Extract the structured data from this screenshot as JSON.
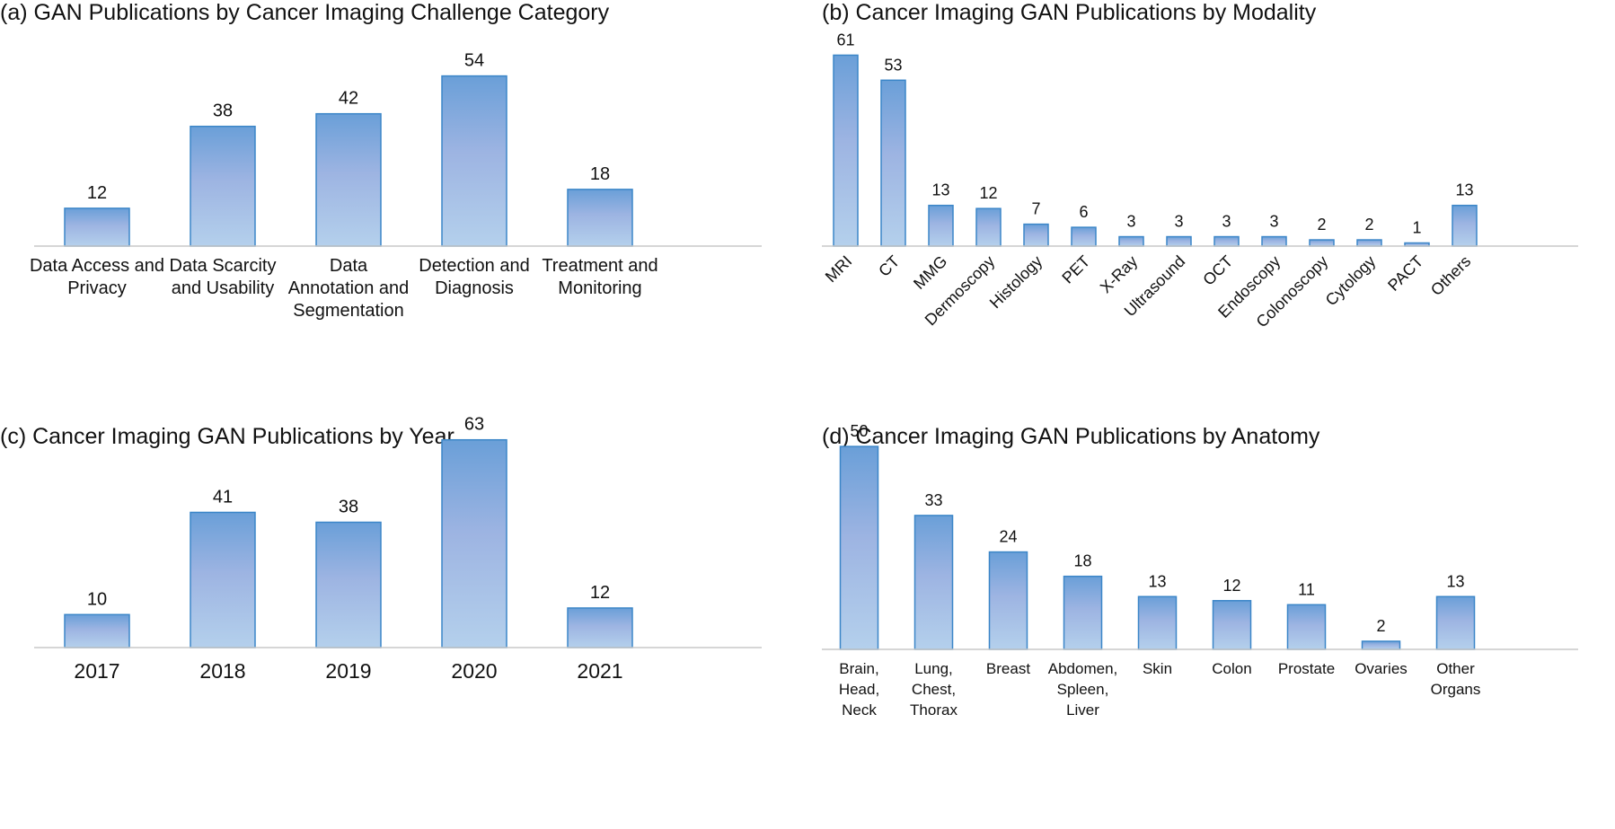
{
  "colors": {
    "bar_top": "#6a9fd8",
    "bar_mid": "#9db4e2",
    "bar_bottom": "#b4d0ec",
    "bar_stroke": "#3b86c8",
    "axis": "#c8c8c8"
  },
  "chart_data": [
    {
      "id": "a",
      "type": "bar",
      "title": "(a) GAN Publications by Cancer Imaging Challenge Category",
      "categories": [
        "Data Access and Privacy",
        "Data Scarcity and Usability",
        "Data Annotation and Segmentation",
        "Detection and Diagnosis",
        "Treatment and Monitoring"
      ],
      "category_lines": [
        [
          "Data Access and",
          "Privacy"
        ],
        [
          "Data Scarcity",
          "and Usability"
        ],
        [
          "Data",
          "Annotation and",
          "Segmentation"
        ],
        [
          "Detection and",
          "Diagnosis"
        ],
        [
          "Treatment and",
          "Monitoring"
        ]
      ],
      "values": [
        12,
        38,
        42,
        54,
        18
      ],
      "ylim": [
        0,
        65
      ],
      "xlabel": "",
      "ylabel": "",
      "grid": false,
      "label_rotation": 0
    },
    {
      "id": "b",
      "type": "bar",
      "title": "(b) Cancer Imaging GAN Publications by Modality",
      "categories": [
        "MRI",
        "CT",
        "MMG",
        "Dermoscopy",
        "Histology",
        "PET",
        "X-Ray",
        "Ultrasound",
        "OCT",
        "Endoscopy",
        "Colonoscopy",
        "Cytology",
        "PACT",
        "Others"
      ],
      "category_lines": [
        [
          "MRI"
        ],
        [
          "CT"
        ],
        [
          "MMG"
        ],
        [
          "Dermoscopy"
        ],
        [
          "Histology"
        ],
        [
          "PET"
        ],
        [
          "X-Ray"
        ],
        [
          "Ultrasound"
        ],
        [
          "OCT"
        ],
        [
          "Endoscopy"
        ],
        [
          "Colonoscopy"
        ],
        [
          "Cytology"
        ],
        [
          "PACT"
        ],
        [
          "Others"
        ]
      ],
      "values": [
        61,
        53,
        13,
        12,
        7,
        6,
        3,
        3,
        3,
        3,
        2,
        2,
        1,
        13
      ],
      "ylim": [
        0,
        66
      ],
      "xlabel": "",
      "ylabel": "",
      "grid": false,
      "label_rotation": -45
    },
    {
      "id": "c",
      "type": "bar",
      "title": "(c) Cancer Imaging GAN Publications by Year",
      "categories": [
        "2017",
        "2018",
        "2019",
        "2020",
        "2021"
      ],
      "category_lines": [
        [
          "2017"
        ],
        [
          "2018"
        ],
        [
          "2019"
        ],
        [
          "2020"
        ],
        [
          "2021"
        ]
      ],
      "values": [
        10,
        41,
        38,
        63,
        12
      ],
      "ylim": [
        0,
        70
      ],
      "xlabel": "",
      "ylabel": "",
      "grid": false,
      "label_rotation": 0
    },
    {
      "id": "d",
      "type": "bar",
      "title": "(d) Cancer Imaging GAN Publications by Anatomy",
      "categories": [
        "Brain, Head, Neck",
        "Lung, Chest, Thorax",
        "Breast",
        "Abdomen, Spleen, Liver",
        "Skin",
        "Colon",
        "Prostate",
        "Ovaries",
        "Other Organs"
      ],
      "category_lines": [
        [
          "Brain,",
          "Head,",
          "Neck"
        ],
        [
          "Lung,",
          "Chest,",
          "Thorax"
        ],
        [
          "Breast"
        ],
        [
          "Abdomen,",
          "Spleen,",
          "Liver"
        ],
        [
          "Skin"
        ],
        [
          "Colon"
        ],
        [
          "Prostate"
        ],
        [
          "Ovaries"
        ],
        [
          "Other",
          "Organs"
        ]
      ],
      "values": [
        50,
        33,
        24,
        18,
        13,
        12,
        11,
        2,
        13
      ],
      "ylim": [
        0,
        56
      ],
      "xlabel": "",
      "ylabel": "",
      "grid": false,
      "label_rotation": 0
    }
  ]
}
